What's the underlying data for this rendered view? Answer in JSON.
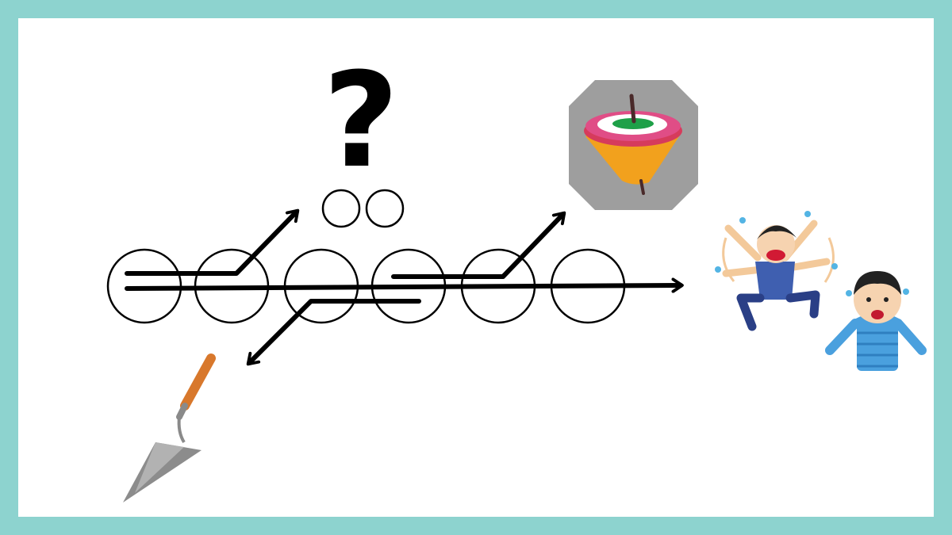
{
  "diagram": {
    "question_mark": "?",
    "main_circles": 6,
    "small_circles": 2,
    "illustrations": [
      "question-mark",
      "spinning-top",
      "trowel",
      "angry-child",
      "startled-boy"
    ]
  },
  "colors": {
    "frame": "#8dd3cf",
    "background": "#ffffff",
    "line": "#000000",
    "top_tile": "#9e9e9e"
  }
}
